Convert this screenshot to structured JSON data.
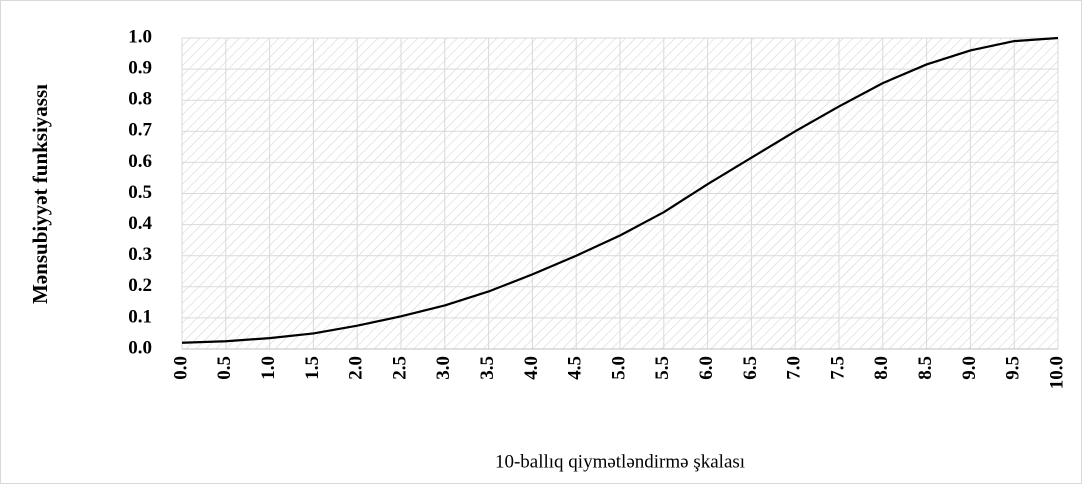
{
  "chart_data": {
    "type": "line",
    "ylabel": "Mənsubiyyət funksiyassı",
    "xlabel": "10-ballıq qiymətləndirmə şkalası",
    "x": [
      0,
      0.5,
      1,
      1.5,
      2,
      2.5,
      3,
      3.5,
      4,
      4.5,
      5,
      5.5,
      6,
      6.5,
      7,
      7.5,
      8,
      8.5,
      9,
      9.5,
      10
    ],
    "values": [
      0.02,
      0.025,
      0.035,
      0.05,
      0.075,
      0.105,
      0.14,
      0.185,
      0.24,
      0.3,
      0.365,
      0.44,
      0.53,
      0.615,
      0.7,
      0.78,
      0.855,
      0.915,
      0.96,
      0.99,
      1.0
    ],
    "color": "#000000",
    "xlim": [
      0,
      10
    ],
    "xticks": [
      {
        "value": 0,
        "label": "0.0"
      },
      0.5,
      {
        "value": 1,
        "label": "1.0"
      },
      1.5,
      {
        "value": 2,
        "label": "2.0"
      },
      2.5,
      {
        "value": 3,
        "label": "3.0"
      },
      3.5,
      {
        "value": 4,
        "label": "4.0"
      },
      4.5,
      {
        "value": 5,
        "label": "5.0"
      },
      5.5,
      {
        "value": 6,
        "label": "6.0"
      },
      6.5,
      {
        "value": 7,
        "label": "7.0"
      },
      7.5,
      {
        "value": 8,
        "label": "8.0"
      },
      8.5,
      {
        "value": 9,
        "label": "9.0"
      },
      9.5,
      {
        "value": 10,
        "label": "10.0"
      }
    ],
    "ylim": [
      0,
      1
    ],
    "yticks": [
      {
        "value": 0,
        "label": "0.0"
      },
      0.1,
      0.2,
      0.3,
      0.4,
      0.5,
      0.6,
      0.7,
      0.8,
      0.9,
      {
        "value": 1,
        "label": "1.0"
      }
    ],
    "grid": true
  }
}
